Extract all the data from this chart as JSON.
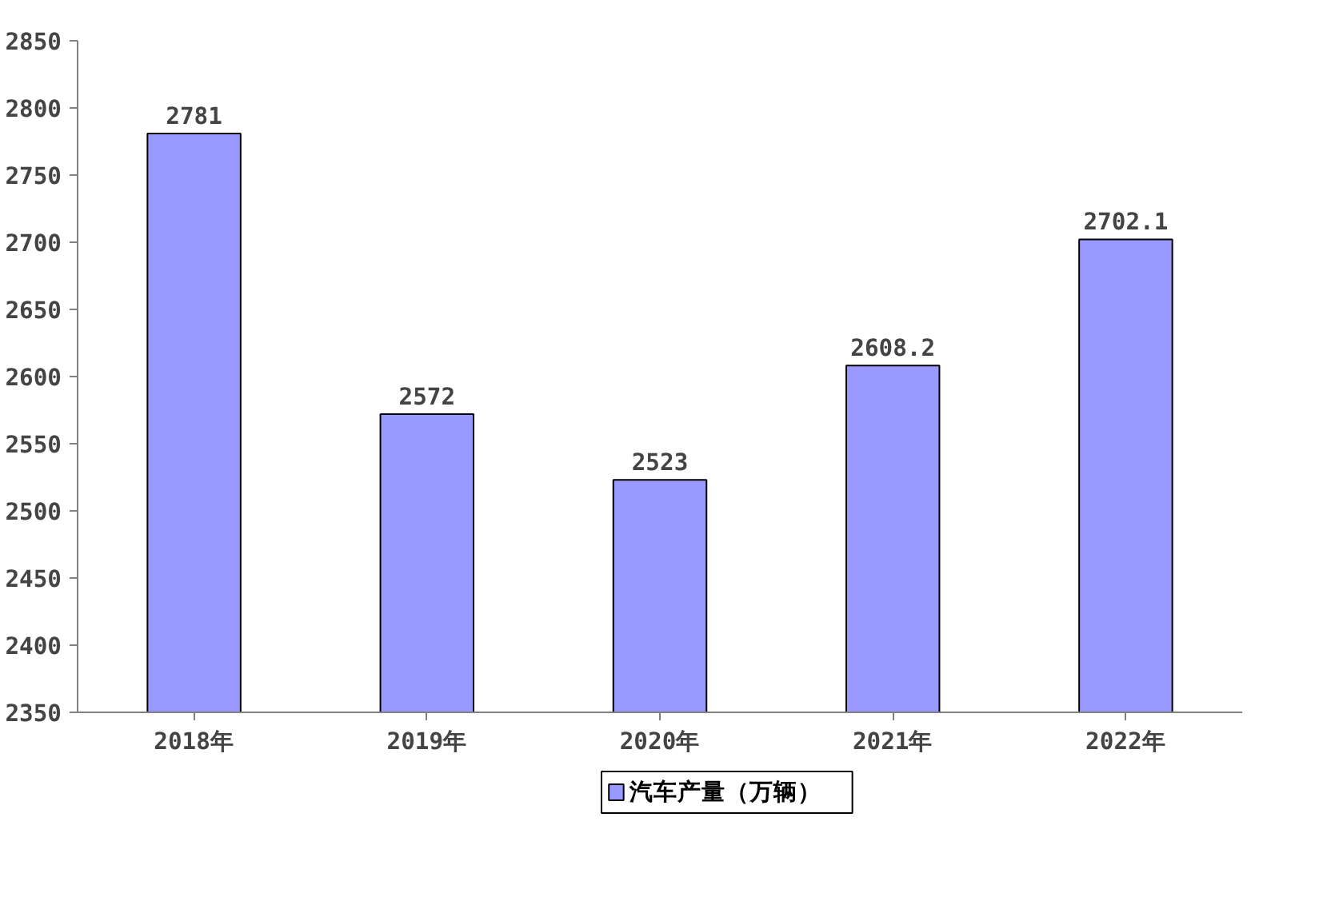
{
  "chart_data": {
    "type": "bar",
    "categories": [
      "2018年",
      "2019年",
      "2020年",
      "2021年",
      "2022年"
    ],
    "series": [
      {
        "name": "汽车产量（万辆）",
        "color": "#9999ff",
        "values": [
          2781,
          2572,
          2523,
          2608.2,
          2702.1
        ]
      }
    ],
    "ylim": [
      2350,
      2850
    ],
    "yticks": [
      2350,
      2400,
      2450,
      2500,
      2550,
      2600,
      2650,
      2700,
      2750,
      2800,
      2850
    ],
    "data_labels": true,
    "grid": false,
    "legend": "bottom"
  }
}
